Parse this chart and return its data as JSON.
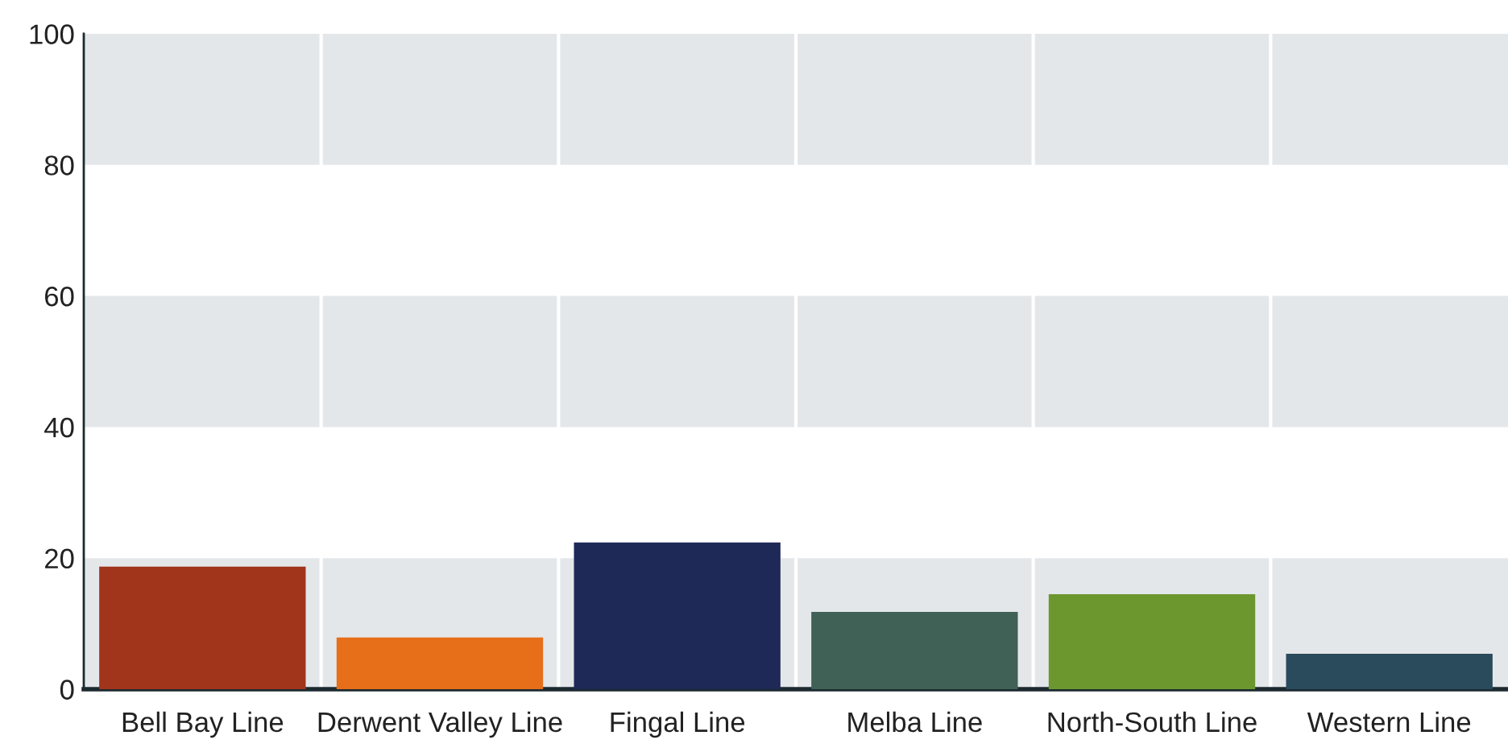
{
  "chart_data": {
    "type": "bar",
    "categories": [
      "Bell Bay Line",
      "Derwent Valley Line",
      "Fingal Line",
      "Melba Line",
      "North-South Line",
      "Western Line"
    ],
    "values": [
      18.7,
      7.9,
      22.4,
      11.8,
      14.5,
      5.4
    ],
    "colors": [
      "#a1351c",
      "#e76f19",
      "#1f2957",
      "#406155",
      "#6c972f",
      "#2a4b5c"
    ],
    "ylim": [
      0,
      100
    ],
    "yticks": [
      0,
      20,
      40,
      60,
      80,
      100
    ],
    "bands": [
      {
        "axis": "y",
        "from": 0,
        "to": 20,
        "color": "#e4e7ea"
      },
      {
        "axis": "y",
        "from": 40,
        "to": 60,
        "color": "#e4e7ea"
      },
      {
        "axis": "y",
        "from": 80,
        "to": 100,
        "color": "#e4e7ea"
      }
    ],
    "grid": "x"
  }
}
